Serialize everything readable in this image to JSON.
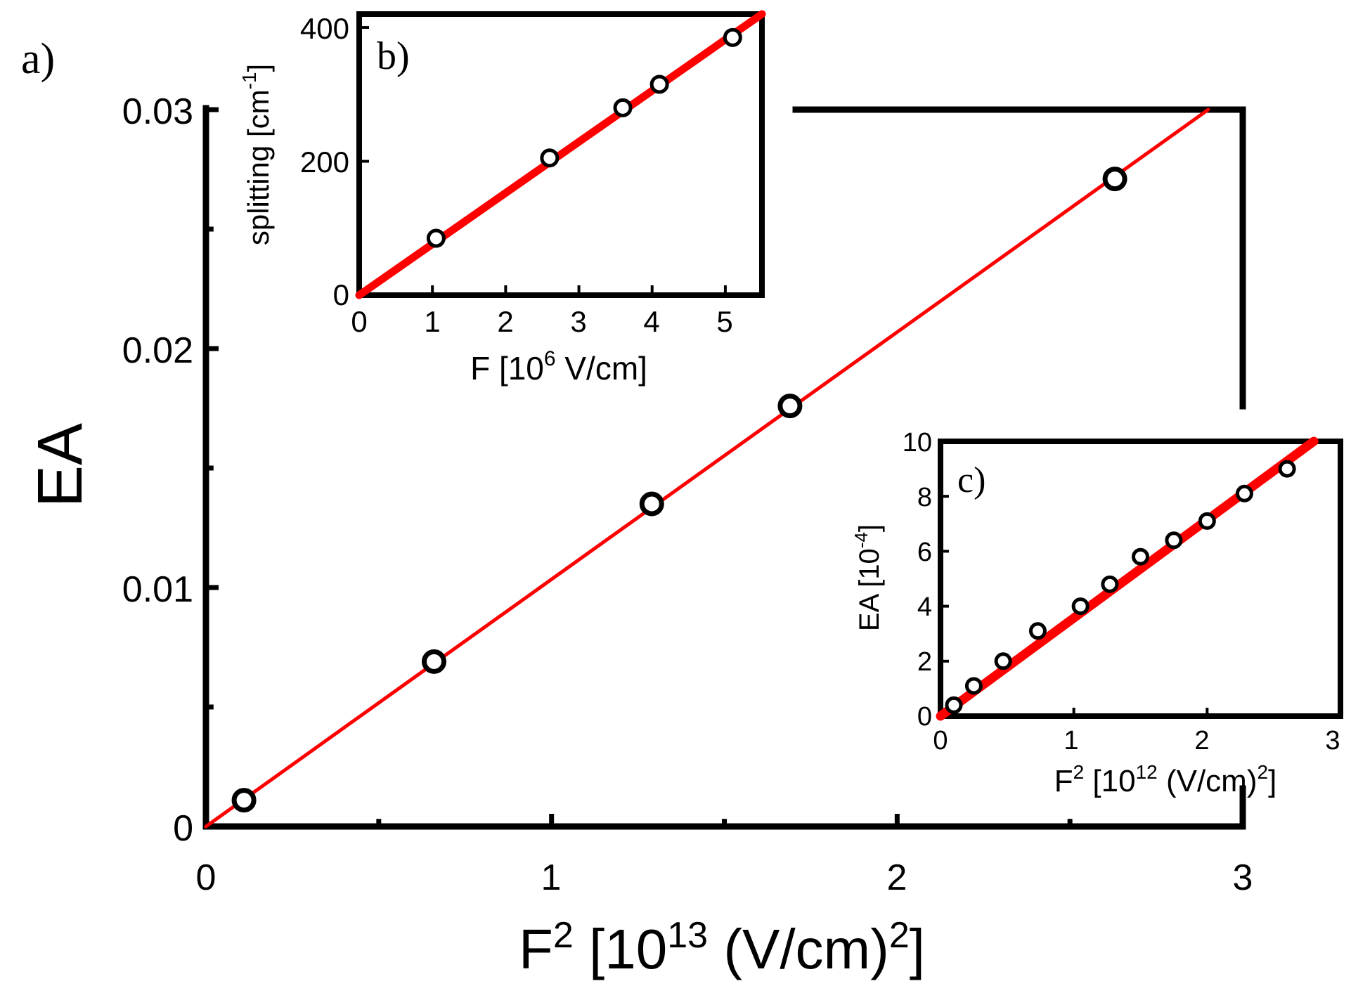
{
  "chart_data": [
    {
      "id": "a",
      "type": "scatter",
      "panel_label": "a)",
      "xlabel_main": "F",
      "xlabel_sup1": "2",
      "xlabel_mid": " [10",
      "xlabel_sup2": "13",
      "xlabel_unit": " (V/cm)",
      "xlabel_sup3": "2",
      "xlabel_end": "]",
      "ylabel": "EA",
      "xlim": [
        0,
        3
      ],
      "ylim": [
        0,
        0.03
      ],
      "xticks": [
        0,
        1,
        2,
        3
      ],
      "xtick_labels": [
        "0",
        "1",
        "2",
        "3"
      ],
      "yticks": [
        0,
        0.01,
        0.02,
        0.03
      ],
      "ytick_labels": [
        "0",
        "0.01",
        "0.02",
        "0.03"
      ],
      "grid": false,
      "series": [
        {
          "name": "EA data",
          "x": [
            0.11,
            0.66,
            1.29,
            1.69,
            2.63
          ],
          "y": [
            0.0011,
            0.0069,
            0.0135,
            0.0176,
            0.0271
          ]
        },
        {
          "name": "linear fit",
          "style": "line",
          "x": [
            0,
            2.9
          ],
          "y": [
            0,
            0.03
          ]
        }
      ]
    },
    {
      "id": "b",
      "type": "scatter",
      "panel_label": "b)",
      "xlabel_main": "F [10",
      "xlabel_sup1": "6",
      "xlabel_end": " V/cm]",
      "ylabel_main": "splitting [cm",
      "ylabel_sup": "-1",
      "ylabel_end": "]",
      "xlim": [
        0,
        5.5
      ],
      "ylim": [
        0,
        420
      ],
      "xticks": [
        0,
        1,
        2,
        3,
        4,
        5
      ],
      "xtick_labels": [
        "0",
        "1",
        "2",
        "3",
        "4",
        "5"
      ],
      "yticks": [
        0,
        200,
        400
      ],
      "ytick_labels": [
        "0",
        "200",
        "400"
      ],
      "grid": false,
      "series": [
        {
          "name": "splitting data",
          "x": [
            1.05,
            2.6,
            3.6,
            4.1,
            5.1
          ],
          "y": [
            85,
            205,
            280,
            315,
            385
          ]
        },
        {
          "name": "linear fit",
          "style": "line",
          "x": [
            0,
            5.5
          ],
          "y": [
            0,
            420
          ]
        }
      ]
    },
    {
      "id": "c",
      "type": "scatter",
      "panel_label": "c)",
      "xlabel_main": "F",
      "xlabel_sup1": "2",
      "xlabel_mid": " [10",
      "xlabel_sup2": "12",
      "xlabel_unit": " (V/cm)",
      "xlabel_sup3": "2",
      "xlabel_end": "]",
      "ylabel_main": "EA [10",
      "ylabel_sup": "-4",
      "ylabel_end": "]",
      "xlim": [
        0,
        3
      ],
      "ylim": [
        0,
        10
      ],
      "xticks": [
        0,
        1,
        2,
        3
      ],
      "xtick_labels": [
        "0",
        "1",
        "2",
        "3"
      ],
      "yticks": [
        0,
        2,
        4,
        6,
        8,
        10
      ],
      "ytick_labels": [
        "0",
        "2",
        "4",
        "6",
        "8",
        "10"
      ],
      "grid": false,
      "series": [
        {
          "name": "EA data",
          "x": [
            0.1,
            0.25,
            0.47,
            0.73,
            1.05,
            1.27,
            1.5,
            1.75,
            2.0,
            2.28,
            2.6
          ],
          "y": [
            0.4,
            1.1,
            2.0,
            3.1,
            4.0,
            4.8,
            5.8,
            6.4,
            7.1,
            8.1,
            9.0
          ]
        },
        {
          "name": "linear fit",
          "style": "line",
          "x": [
            0,
            2.8
          ],
          "y": [
            0,
            10
          ]
        }
      ]
    }
  ]
}
